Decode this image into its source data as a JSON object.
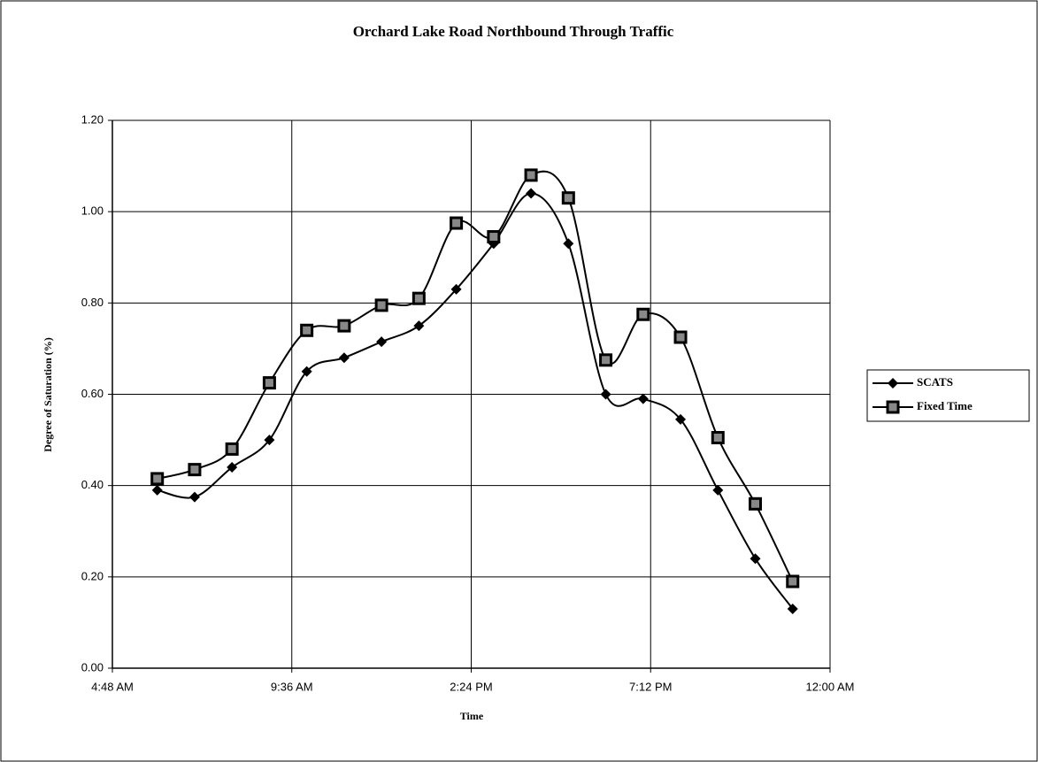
{
  "chart_data": {
    "type": "line",
    "title": "Orchard Lake Road Northbound Through Traffic",
    "xlabel": "Time",
    "ylabel": "Degree of Saturation (%)",
    "x": [
      6,
      7,
      8,
      9,
      10,
      11,
      12,
      13,
      14,
      15,
      16,
      17,
      18,
      19,
      20,
      21,
      22,
      23
    ],
    "series": [
      {
        "name": "SCATS",
        "color": "#000000",
        "marker": "diamond",
        "values": [
          0.39,
          0.375,
          0.44,
          0.5,
          0.65,
          0.68,
          0.715,
          0.75,
          0.83,
          0.93,
          1.04,
          0.93,
          0.6,
          0.59,
          0.545,
          0.39,
          0.24,
          0.13
        ]
      },
      {
        "name": "Fixed Time",
        "color": "#000000",
        "marker": "square",
        "values": [
          0.415,
          0.435,
          0.48,
          0.625,
          0.74,
          0.75,
          0.795,
          0.81,
          0.975,
          0.945,
          1.08,
          1.03,
          0.675,
          0.775,
          0.725,
          0.505,
          0.36,
          0.19
        ]
      }
    ],
    "xlim": [
      4.8,
      24
    ],
    "xticks": [
      {
        "value": 4.8,
        "label": "4:48 AM"
      },
      {
        "value": 9.6,
        "label": "9:36 AM"
      },
      {
        "value": 14.4,
        "label": "2:24 PM"
      },
      {
        "value": 19.2,
        "label": "7:12 PM"
      },
      {
        "value": 24,
        "label": "12:00 AM"
      }
    ],
    "ylim": [
      0,
      1.2
    ],
    "yticks": [
      {
        "value": 0,
        "label": "0.00"
      },
      {
        "value": 0.2,
        "label": "0.20"
      },
      {
        "value": 0.4,
        "label": "0.40"
      },
      {
        "value": 0.6,
        "label": "0.60"
      },
      {
        "value": 0.8,
        "label": "0.80"
      },
      {
        "value": 1.0,
        "label": "1.00"
      },
      {
        "value": 1.2,
        "label": "1.20"
      }
    ],
    "grid": true,
    "legend": "right"
  }
}
